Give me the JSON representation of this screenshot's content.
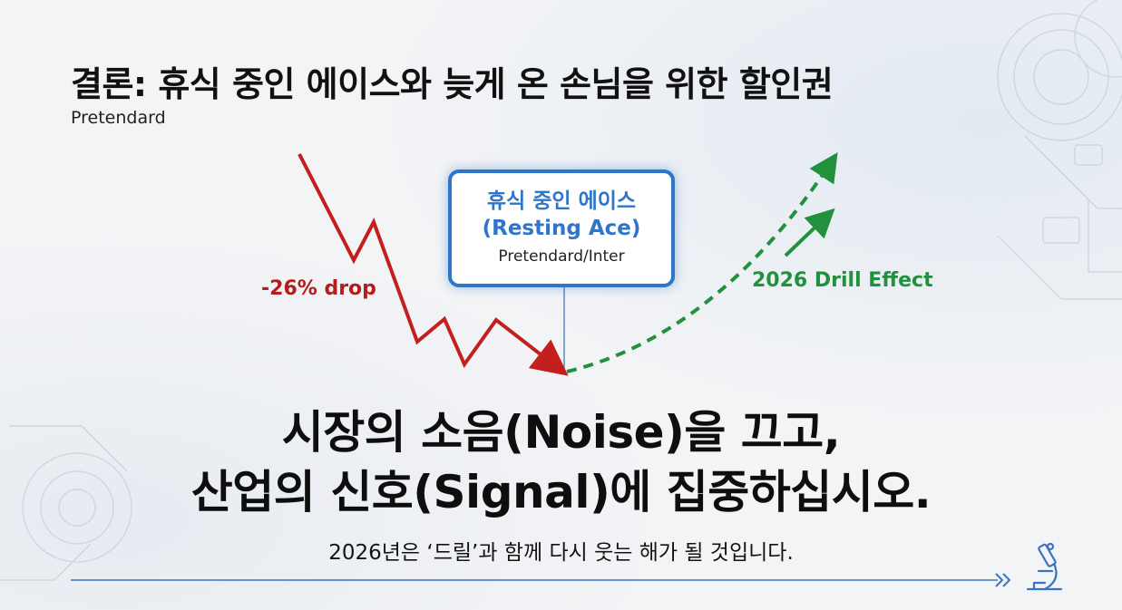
{
  "slide": {
    "title": "결론: 휴식 중인 에이스와 늦게 온 손님을 위한 할인권",
    "subtitle": "Pretendard"
  },
  "callout": {
    "title": "휴식 중인 에이스",
    "title_en": "(Resting Ace)",
    "subtitle": "Pretendard/Inter"
  },
  "annotations": {
    "drop_label": "-26% drop",
    "effect_label": "2026 Drill Effect"
  },
  "headline": {
    "line1": "시장의 소음(Noise)을 끄고,",
    "line2": "산업의 신호(Signal)에 집중하십시오."
  },
  "footer": {
    "note": "2026년은 ‘드릴’과 함께 다시 웃는 해가 될 것입니다."
  },
  "icons": {
    "footer": "microscope-icon",
    "arrow": "double-chevron-right-icon"
  },
  "colors": {
    "decline": "#c41f1f",
    "rebound": "#22913d",
    "accent": "#2f75c9",
    "footer_line": "#3a73c4"
  }
}
